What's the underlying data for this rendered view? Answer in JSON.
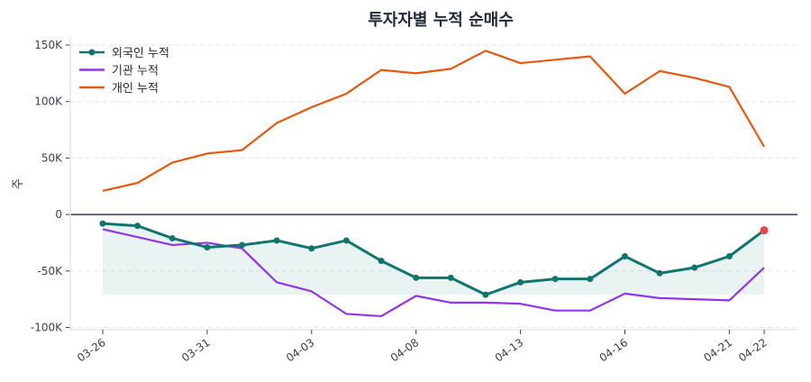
{
  "chart_data": {
    "type": "line",
    "title": "투자자별 누적 순매수",
    "xlabel": "",
    "ylabel": "주",
    "ylim": [
      -102000,
      158000
    ],
    "yticks": [
      -100000,
      -50000,
      0,
      50000,
      100000,
      150000
    ],
    "ytick_labels": [
      "-100K",
      "-50K",
      "0",
      "50K",
      "100K",
      "150K"
    ],
    "xtick_index": [
      0,
      3,
      6,
      9,
      12,
      15,
      18,
      19
    ],
    "xtick_labels": [
      "03-26",
      "03-31",
      "04-03",
      "04-08",
      "04-13",
      "04-16",
      "04-21",
      "04-22"
    ],
    "grid": "horizontal dashed",
    "legend": "top-left",
    "series": [
      {
        "name": "외국인 누적",
        "color": "#0f766e",
        "markers": true,
        "values": [
          -8000,
          -10000,
          -21000,
          -29000,
          -27000,
          -23000,
          -30000,
          -23000,
          -41000,
          -56000,
          -56000,
          -71000,
          -60000,
          -57000,
          -57000,
          -37000,
          -52000,
          -47000,
          -37000,
          -14000
        ]
      },
      {
        "name": "기관 누적",
        "color": "#9333ea",
        "markers": false,
        "values": [
          -13000,
          -20000,
          -27000,
          -25000,
          -30000,
          -60000,
          -68000,
          -88000,
          -90000,
          -72000,
          -78000,
          -78000,
          -79000,
          -85000,
          -85000,
          -70000,
          -74000,
          -75000,
          -76000,
          -47000
        ]
      },
      {
        "name": "개인 누적",
        "color": "#ea580c",
        "markers": false,
        "values": [
          21000,
          28000,
          46000,
          54000,
          57000,
          81000,
          95000,
          107000,
          128000,
          125000,
          129000,
          145000,
          134000,
          137000,
          140000,
          107000,
          127000,
          121000,
          113000,
          60000
        ]
      }
    ],
    "highlight_last_color": "#ef4444",
    "fill_color": "#0f766e"
  }
}
